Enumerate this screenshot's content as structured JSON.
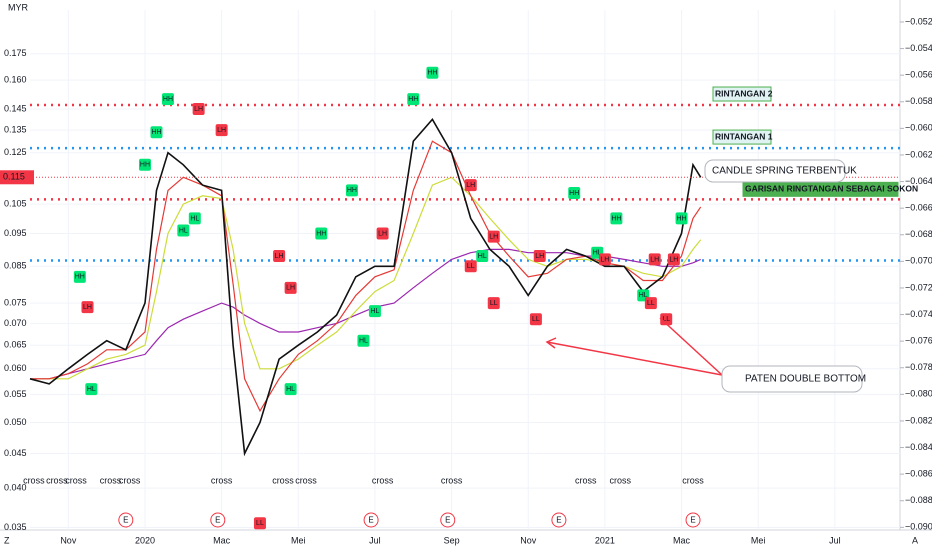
{
  "chart_data": {
    "type": "line",
    "currency": "MYR",
    "log_scale": true,
    "grid": true,
    "x": [
      -1,
      -0.5,
      0,
      0.5,
      1,
      1.5,
      2,
      2.3,
      2.6,
      3,
      3.5,
      4,
      4.3,
      4.6,
      5,
      5.5,
      6,
      6.5,
      7,
      7.5,
      8,
      8.5,
      9,
      9.5,
      10,
      10.5,
      11,
      11.5,
      12,
      12.5,
      13,
      13.5,
      14,
      14.5,
      15,
      15.5,
      16,
      16.3,
      16.5
    ],
    "xlim": [
      -1,
      21.7
    ],
    "xticks": [
      {
        "value": 0,
        "label": "Nov"
      },
      {
        "value": 2,
        "label": "2020"
      },
      {
        "value": 4,
        "label": "Mac"
      },
      {
        "value": 6,
        "label": "Mei"
      },
      {
        "value": 8,
        "label": "Jul"
      },
      {
        "value": 10,
        "label": "Sep"
      },
      {
        "value": 12,
        "label": "Nov"
      },
      {
        "value": 14,
        "label": "2021"
      },
      {
        "value": 16,
        "label": "Mac"
      },
      {
        "value": 18,
        "label": "Mei"
      },
      {
        "value": 20,
        "label": "Jul"
      }
    ],
    "ylim": [
      0.0347,
      0.203
    ],
    "yticks": [
      {
        "value": 0.035,
        "label": "0.035"
      },
      {
        "value": 0.04,
        "label": "0.040"
      },
      {
        "value": 0.045,
        "label": "0.045"
      },
      {
        "value": 0.05,
        "label": "0.050"
      },
      {
        "value": 0.055,
        "label": "0.055"
      },
      {
        "value": 0.06,
        "label": "0.060"
      },
      {
        "value": 0.065,
        "label": "0.065"
      },
      {
        "value": 0.07,
        "label": "0.070"
      },
      {
        "value": 0.075,
        "label": "0.075"
      },
      {
        "value": 0.085,
        "label": "0.085"
      },
      {
        "value": 0.095,
        "label": "0.095"
      },
      {
        "value": 0.105,
        "label": "0.105"
      },
      {
        "value": 0.125,
        "label": "0.125"
      },
      {
        "value": 0.135,
        "label": "0.135"
      },
      {
        "value": 0.145,
        "label": "0.145"
      },
      {
        "value": 0.16,
        "label": "0.160"
      },
      {
        "value": 0.175,
        "label": "0.175"
      }
    ],
    "y2lim": [
      -0.0902,
      -0.0511
    ],
    "y2ticks": [
      {
        "value": -0.052,
        "label": "−0.052"
      },
      {
        "value": -0.054,
        "label": "−0.054"
      },
      {
        "value": -0.056,
        "label": "−0.056"
      },
      {
        "value": -0.058,
        "label": "−0.058"
      },
      {
        "value": -0.06,
        "label": "−0.060"
      },
      {
        "value": -0.062,
        "label": "−0.062"
      },
      {
        "value": -0.064,
        "label": "−0.064"
      },
      {
        "value": -0.066,
        "label": "−0.066"
      },
      {
        "value": -0.068,
        "label": "−0.068"
      },
      {
        "value": -0.07,
        "label": "−0.070"
      },
      {
        "value": -0.072,
        "label": "−0.072"
      },
      {
        "value": -0.074,
        "label": "−0.074"
      },
      {
        "value": -0.076,
        "label": "−0.076"
      },
      {
        "value": -0.078,
        "label": "−0.078"
      },
      {
        "value": -0.08,
        "label": "−0.080"
      },
      {
        "value": -0.082,
        "label": "−0.082"
      },
      {
        "value": -0.084,
        "label": "−0.084"
      },
      {
        "value": -0.086,
        "label": "−0.086"
      },
      {
        "value": -0.088,
        "label": "−0.088"
      },
      {
        "value": -0.09,
        "label": "−0.090"
      }
    ],
    "series": [
      {
        "color": "#9c27b0",
        "values": [
          0.058,
          0.058,
          0.059,
          0.06,
          0.061,
          0.062,
          0.063,
          0.066,
          0.069,
          0.071,
          0.073,
          0.075,
          0.074,
          0.072,
          0.07,
          0.068,
          0.068,
          0.069,
          0.07,
          0.072,
          0.074,
          0.075,
          0.079,
          0.083,
          0.087,
          0.089,
          0.09,
          0.09,
          0.089,
          0.089,
          0.089,
          0.088,
          0.088,
          0.087,
          0.086,
          0.085,
          0.085,
          0.086,
          0.087
        ]
      },
      {
        "color": "#cddc39",
        "values": [
          0.058,
          0.058,
          0.058,
          0.06,
          0.062,
          0.063,
          0.065,
          0.078,
          0.095,
          0.105,
          0.108,
          0.107,
          0.09,
          0.07,
          0.06,
          0.06,
          0.062,
          0.065,
          0.068,
          0.073,
          0.078,
          0.081,
          0.095,
          0.112,
          0.115,
          0.108,
          0.1,
          0.093,
          0.087,
          0.085,
          0.087,
          0.087,
          0.086,
          0.085,
          0.083,
          0.082,
          0.085,
          0.09,
          0.093
        ]
      },
      {
        "color": "#e53935",
        "values": [
          0.058,
          0.058,
          0.059,
          0.061,
          0.064,
          0.064,
          0.068,
          0.09,
          0.11,
          0.115,
          0.112,
          0.108,
          0.08,
          0.058,
          0.052,
          0.058,
          0.063,
          0.066,
          0.07,
          0.077,
          0.082,
          0.084,
          0.11,
          0.13,
          0.125,
          0.108,
          0.095,
          0.088,
          0.082,
          0.083,
          0.087,
          0.088,
          0.086,
          0.085,
          0.081,
          0.081,
          0.088,
          0.1,
          0.104
        ]
      },
      {
        "color": "#111111",
        "values": [
          0.058,
          0.057,
          0.06,
          0.063,
          0.066,
          0.064,
          0.075,
          0.11,
          0.125,
          0.12,
          0.112,
          0.11,
          0.065,
          0.045,
          0.05,
          0.062,
          0.065,
          0.068,
          0.072,
          0.082,
          0.085,
          0.085,
          0.13,
          0.14,
          0.125,
          0.1,
          0.09,
          0.085,
          0.077,
          0.085,
          0.09,
          0.088,
          0.085,
          0.085,
          0.078,
          0.082,
          0.095,
          0.12,
          0.115
        ]
      }
    ],
    "levels": [
      {
        "value": 0.147,
        "color": "#f23645",
        "label": "RINTANGAN 2"
      },
      {
        "value": 0.127,
        "color": "#2196f3",
        "label": "RINTANGAN 1"
      },
      {
        "value": 0.1067,
        "color": "#f23645",
        "label": "GARISAN RINGTANGAN SEBAGAI SOKON"
      },
      {
        "value": 0.0867,
        "color": "#2196f3"
      }
    ],
    "current_price": {
      "value": 0.115,
      "label": "0.115"
    },
    "annotations": [
      "CANDLE SPRING TERBENTUK",
      "PATEN DOUBLE BOTTOM"
    ],
    "markers": [
      {
        "label": "HH",
        "x": 0.3,
        "value": 0.082,
        "color": "#00e676"
      },
      {
        "label": "LH",
        "x": 0.5,
        "value": 0.074,
        "color": "#f23645"
      },
      {
        "label": "HL",
        "x": 0.6,
        "value": 0.056,
        "color": "#00e676"
      },
      {
        "label": "HH",
        "x": 2,
        "value": 0.12,
        "color": "#00e676"
      },
      {
        "label": "HH",
        "x": 2.3,
        "value": 0.134,
        "color": "#00e676"
      },
      {
        "label": "HH",
        "x": 2.6,
        "value": 0.15,
        "color": "#00e676"
      },
      {
        "label": "HL",
        "x": 3,
        "value": 0.096,
        "color": "#00e676"
      },
      {
        "label": "HL",
        "x": 3.3,
        "value": 0.1,
        "color": "#00e676"
      },
      {
        "label": "LH",
        "x": 3.4,
        "value": 0.145,
        "color": "#f23645"
      },
      {
        "label": "LH",
        "x": 4,
        "value": 0.135,
        "color": "#f23645"
      },
      {
        "label": "LL",
        "x": 5,
        "value": 0.0355,
        "color": "#f23645"
      },
      {
        "label": "LH",
        "x": 5.5,
        "value": 0.088,
        "color": "#f23645"
      },
      {
        "label": "LH",
        "x": 5.8,
        "value": 0.079,
        "color": "#f23645"
      },
      {
        "label": "HL",
        "x": 5.8,
        "value": 0.056,
        "color": "#00e676"
      },
      {
        "label": "HH",
        "x": 6.6,
        "value": 0.095,
        "color": "#00e676"
      },
      {
        "label": "HL",
        "x": 7.7,
        "value": 0.066,
        "color": "#00e676"
      },
      {
        "label": "HH",
        "x": 7.4,
        "value": 0.11,
        "color": "#00e676"
      },
      {
        "label": "HL",
        "x": 8.0,
        "value": 0.073,
        "color": "#00e676"
      },
      {
        "label": "LH",
        "x": 8.2,
        "value": 0.095,
        "color": "#f23645"
      },
      {
        "label": "HH",
        "x": 9,
        "value": 0.15,
        "color": "#00e676"
      },
      {
        "label": "HH",
        "x": 9.5,
        "value": 0.164,
        "color": "#00e676"
      },
      {
        "label": "LH",
        "x": 10.5,
        "value": 0.112,
        "color": "#f23645"
      },
      {
        "label": "LL",
        "x": 10.5,
        "value": 0.085,
        "color": "#f23645"
      },
      {
        "label": "HL",
        "x": 10.8,
        "value": 0.088,
        "color": "#00e676"
      },
      {
        "label": "LH",
        "x": 11.1,
        "value": 0.094,
        "color": "#f23645"
      },
      {
        "label": "LL",
        "x": 11.1,
        "value": 0.075,
        "color": "#f23645"
      },
      {
        "label": "LL",
        "x": 12.2,
        "value": 0.071,
        "color": "#f23645"
      },
      {
        "label": "LH",
        "x": 12.3,
        "value": 0.088,
        "color": "#f23645"
      },
      {
        "label": "HH",
        "x": 13.2,
        "value": 0.109,
        "color": "#00e676"
      },
      {
        "label": "HL",
        "x": 13.8,
        "value": 0.089,
        "color": "#00e676"
      },
      {
        "label": "LH",
        "x": 14,
        "value": 0.087,
        "color": "#f23645"
      },
      {
        "label": "HH",
        "x": 14.3,
        "value": 0.1,
        "color": "#00e676"
      },
      {
        "label": "HL",
        "x": 15,
        "value": 0.077,
        "color": "#00e676"
      },
      {
        "label": "LL",
        "x": 15.2,
        "value": 0.075,
        "color": "#f23645"
      },
      {
        "label": "LH",
        "x": 15.3,
        "value": 0.087,
        "color": "#f23645"
      },
      {
        "label": "LL",
        "x": 15.6,
        "value": 0.071,
        "color": "#f23645"
      },
      {
        "label": "LH",
        "x": 15.8,
        "value": 0.087,
        "color": "#f23645"
      },
      {
        "label": "HH",
        "x": 16,
        "value": 0.1,
        "color": "#00e676"
      }
    ],
    "crosses": [
      {
        "label": "cross",
        "x": -0.9,
        "color": "#4caf50"
      },
      {
        "label": "cross",
        "x": -0.3,
        "color": "#4caf50"
      },
      {
        "label": "cross",
        "x": 0.2,
        "color": "#4caf50"
      },
      {
        "label": "cross",
        "x": 1.1,
        "color": "#f23645"
      },
      {
        "label": "cross",
        "x": 1.6,
        "color": "#f23645"
      },
      {
        "label": "cross",
        "x": 4.0,
        "color": "#f23645"
      },
      {
        "label": "cross",
        "x": 5.6,
        "color": "#f23645"
      },
      {
        "label": "cross",
        "x": 6.2,
        "color": "#4caf50"
      },
      {
        "label": "cross",
        "x": 8.2,
        "color": "#4caf50"
      },
      {
        "label": "cross",
        "x": 10,
        "color": "#f23645"
      },
      {
        "label": "cross",
        "x": 13.5,
        "color": "#4caf50"
      },
      {
        "label": "cross",
        "x": 14.4,
        "color": "#f23645"
      },
      {
        "label": "cross",
        "x": 16.3,
        "color": "#4caf50"
      }
    ],
    "earnings": [
      {
        "label": "E",
        "x": 1.5
      },
      {
        "label": "E",
        "x": 3.9
      },
      {
        "label": "E",
        "x": 7.9
      },
      {
        "label": "E",
        "x": 9.9
      },
      {
        "label": "E",
        "x": 12.8
      },
      {
        "label": "E",
        "x": 16.3
      }
    ],
    "corner_labels": [
      "Z",
      "A"
    ]
  }
}
